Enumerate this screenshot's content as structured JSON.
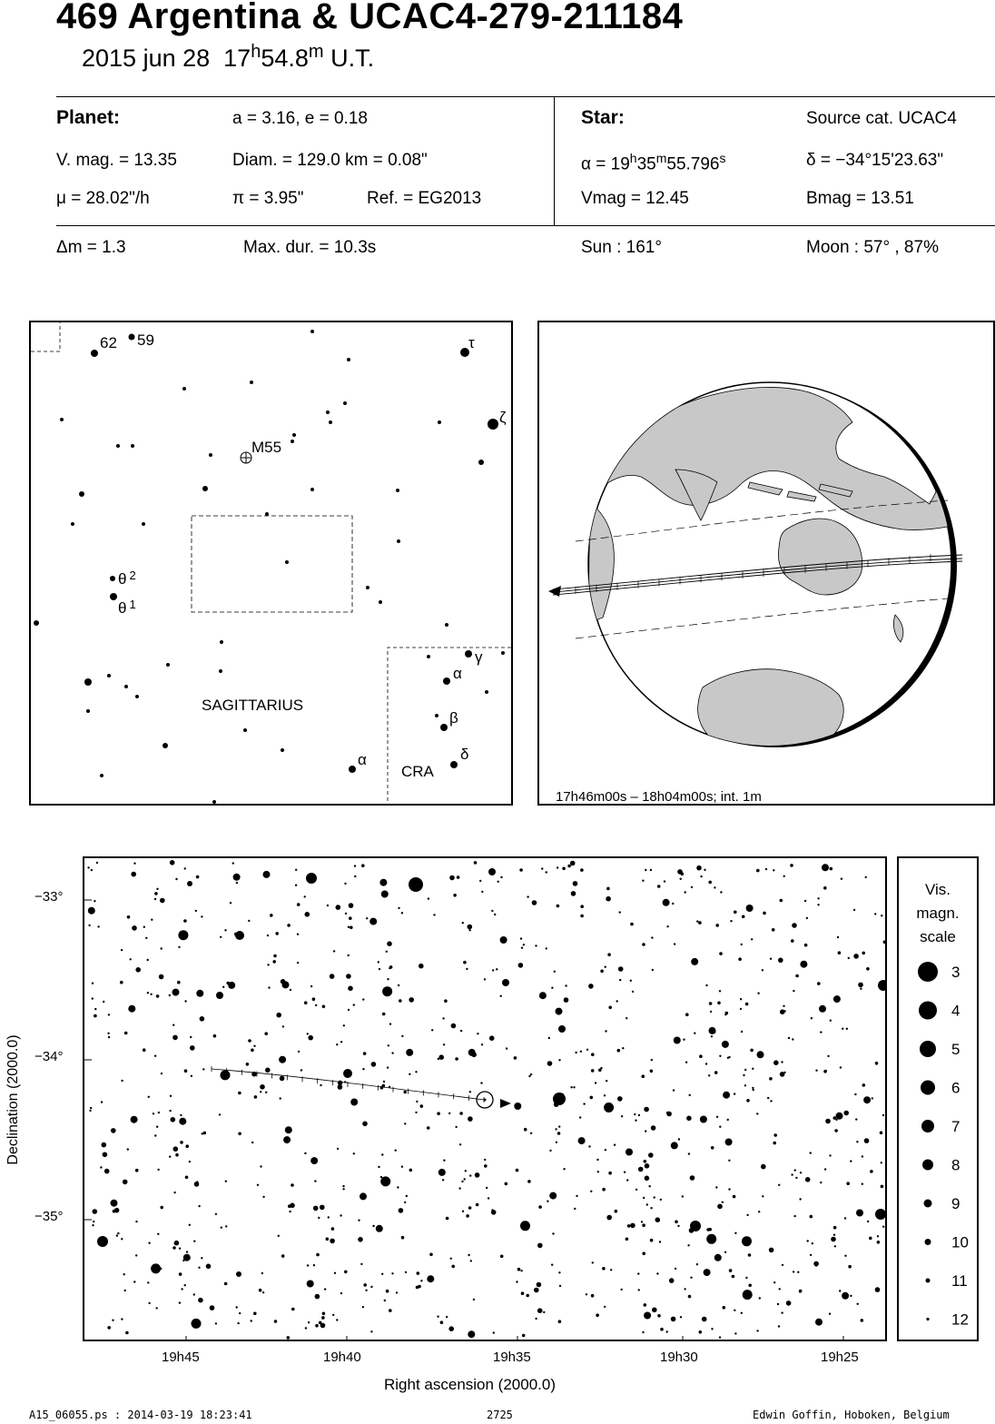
{
  "header": {
    "title": "469 Argentina  &  UCAC4-279-211184",
    "date": "2015 jun 28",
    "time_h": "17",
    "time_hsup": "h",
    "time_m": "54.8",
    "time_msup": "m",
    "time_ut": "U.T."
  },
  "planet": {
    "heading": "Planet:",
    "orbit": "a = 3.16, e = 0.18",
    "vmag": "V. mag. = 13.35",
    "diam": "Diam. = 129.0 km = 0.08\"",
    "mu": "μ =  28.02\"/h",
    "pi": "π =  3.95\"",
    "ref": "Ref. = EG2013"
  },
  "star": {
    "heading": "Star:",
    "source": "Source cat.  UCAC4",
    "alpha_pre": "α = 19",
    "alpha_h": "h",
    "alpha_35": "35",
    "alpha_m": "m",
    "alpha_sec": "55.796",
    "alpha_s": "s",
    "delta": "δ = −34°15'23.63\"",
    "vmag": "Vmag = 12.45",
    "bmag": "Bmag = 13.51"
  },
  "event": {
    "dm": "Δm = 1.3",
    "maxdur": "Max. dur. = 10.3s",
    "sun": "Sun : 161°",
    "moon": "Moon :  57° , 87%"
  },
  "finder": {
    "labels": {
      "l62": "62",
      "l59": "59",
      "tau": "τ",
      "zeta": "ζ",
      "m55": "M55",
      "theta2": "θ",
      "theta2sup": "2",
      "theta1": "θ",
      "theta1sup": "1",
      "gamma": "γ",
      "alpha_cra": "α",
      "beta": "β",
      "delta": "δ",
      "alpha_sgr": "α",
      "sagittarius": "SAGITTARIUS",
      "cra": "CRA"
    }
  },
  "globe": {
    "caption": "17h46m00s – 18h04m00s; int.  1m"
  },
  "starchart": {
    "ylabel": "Declination (2000.0)",
    "xlabel": "Right ascension (2000.0)",
    "yticks": [
      "−33°",
      "−34°",
      "−35°"
    ],
    "xticks": [
      "19h45",
      "19h40",
      "19h35",
      "19h30",
      "19h25"
    ]
  },
  "scale": {
    "title1": "Vis.",
    "title2": "magn.",
    "title3": "scale",
    "mags": [
      "3",
      "4",
      "5",
      "6",
      "7",
      "8",
      "9",
      "10",
      "11",
      "12"
    ]
  },
  "footer": {
    "left": "A15_06055.ps : 2014-03-19 18:23:41",
    "center": "2725",
    "right": "Edwin Goffin, Hoboken, Belgium"
  }
}
